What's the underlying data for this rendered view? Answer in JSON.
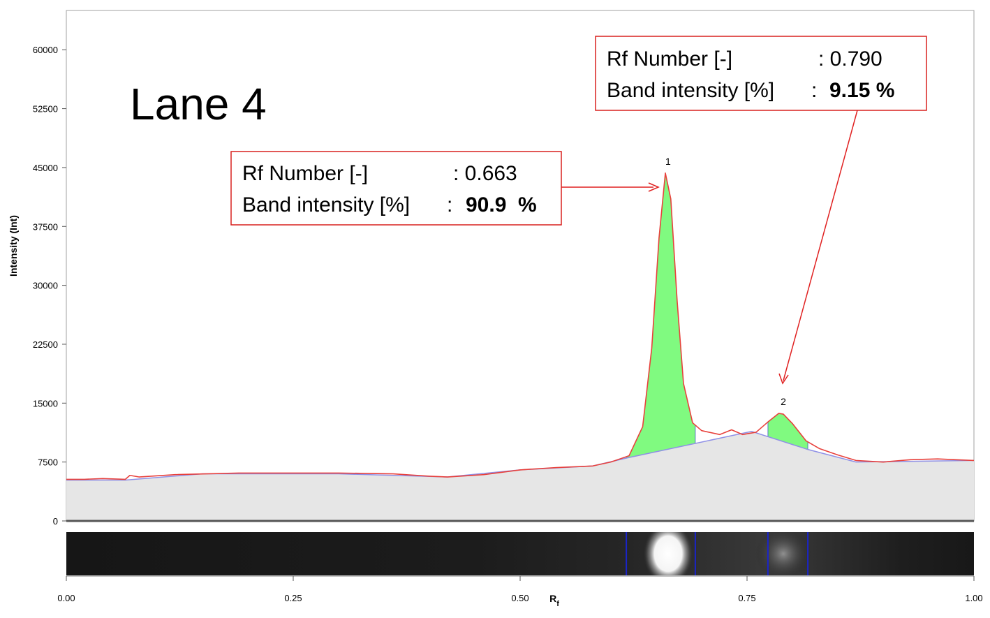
{
  "chart_data": {
    "type": "area",
    "title": "Lane 4",
    "xlabel": "R",
    "xlabel_sub": "f",
    "ylabel": "Intensity (Int)",
    "xlim": [
      0,
      1
    ],
    "ylim": [
      0,
      65000
    ],
    "x_ticks": [
      0,
      0.25,
      0.5,
      0.75,
      1
    ],
    "x_tick_labels": [
      "0.00",
      "0.25",
      "0.50",
      "0.75",
      "1.00"
    ],
    "y_ticks": [
      0,
      7500,
      15000,
      22500,
      30000,
      37500,
      45000,
      52500,
      60000
    ],
    "y_tick_labels": [
      "0",
      "7500",
      "15000",
      "22500",
      "30000",
      "37500",
      "45000",
      "52500",
      "60000"
    ],
    "grid": false,
    "series": [
      {
        "role": "profile",
        "color": "#e8413c",
        "points": [
          [
            0,
            5300
          ],
          [
            0.02,
            5300
          ],
          [
            0.04,
            5400
          ],
          [
            0.065,
            5300
          ],
          [
            0.07,
            5800
          ],
          [
            0.08,
            5600
          ],
          [
            0.12,
            5900
          ],
          [
            0.19,
            6100
          ],
          [
            0.25,
            6100
          ],
          [
            0.3,
            6100
          ],
          [
            0.36,
            6000
          ],
          [
            0.4,
            5700
          ],
          [
            0.42,
            5600
          ],
          [
            0.46,
            5900
          ],
          [
            0.5,
            6500
          ],
          [
            0.54,
            6800
          ],
          [
            0.58,
            7000
          ],
          [
            0.6,
            7500
          ],
          [
            0.62,
            8300
          ],
          [
            0.635,
            12000
          ],
          [
            0.645,
            22000
          ],
          [
            0.653,
            36000
          ],
          [
            0.66,
            44300
          ],
          [
            0.666,
            41000
          ],
          [
            0.673,
            28000
          ],
          [
            0.68,
            17500
          ],
          [
            0.69,
            12500
          ],
          [
            0.7,
            11500
          ],
          [
            0.72,
            11000
          ],
          [
            0.733,
            11600
          ],
          [
            0.745,
            11000
          ],
          [
            0.76,
            11300
          ],
          [
            0.773,
            12600
          ],
          [
            0.785,
            13700
          ],
          [
            0.79,
            13600
          ],
          [
            0.8,
            12400
          ],
          [
            0.815,
            10200
          ],
          [
            0.83,
            9200
          ],
          [
            0.85,
            8400
          ],
          [
            0.87,
            7700
          ],
          [
            0.9,
            7500
          ],
          [
            0.93,
            7800
          ],
          [
            0.96,
            7900
          ],
          [
            1.0,
            7700
          ]
        ]
      },
      {
        "role": "baseline",
        "color": "#8f90e6",
        "points": [
          [
            0,
            5200
          ],
          [
            0.065,
            5200
          ],
          [
            0.15,
            6000
          ],
          [
            0.3,
            6000
          ],
          [
            0.42,
            5600
          ],
          [
            0.5,
            6500
          ],
          [
            0.58,
            7000
          ],
          [
            0.617,
            8000
          ],
          [
            0.755,
            11400
          ],
          [
            0.817,
            9100
          ],
          [
            0.87,
            7500
          ],
          [
            1.0,
            7700
          ]
        ]
      }
    ],
    "peaks": [
      {
        "label": "1",
        "rf": 0.663,
        "peak_intensity": 44300,
        "band_intensity_percent": 90.9,
        "start": 0.617,
        "end": 0.693,
        "fill": "#80fa80"
      },
      {
        "label": "2",
        "rf": 0.79,
        "peak_intensity": 13700,
        "band_intensity_percent": 9.15,
        "start": 0.773,
        "end": 0.817,
        "fill": "#80fa80"
      }
    ],
    "annotations": [
      {
        "rf_label": "Rf Number [-]",
        "rf_value": ": 0.663",
        "band_label": "Band intensity [%]",
        "band_sep": ":",
        "band_value": "90.9  %"
      },
      {
        "rf_label": "Rf Number [-]",
        "rf_value": ": 0.790",
        "band_label": "Band intensity [%]",
        "band_sep": ":",
        "band_value": "9.15 %"
      }
    ],
    "lane_image_bands": [
      0.617,
      0.693,
      0.773,
      0.817
    ],
    "colors": {
      "baseline_fill": "#e6e6e6",
      "annotation_border": "#d9201e",
      "arrow": "#e02020",
      "band_marker": "#1a24c8",
      "lane_background": "#1c1c1c"
    }
  }
}
